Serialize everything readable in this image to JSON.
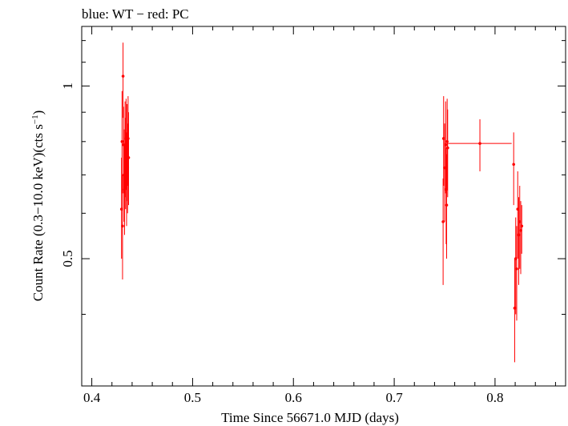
{
  "chart_data": {
    "type": "scatter",
    "title": "blue: WT − red: PC",
    "xlabel": "Time Since 56671.0 MJD (days)",
    "ylabel_main": "Count Rate (0.3−10.0 keV)(cts s",
    "ylabel_sup": "−1",
    "ylabel_end": ")",
    "xlim": [
      0.39,
      0.87
    ],
    "ylim": [
      0.3,
      1.27
    ],
    "yscale": "log",
    "xticks": [
      {
        "v": 0.4,
        "label": "0.4"
      },
      {
        "v": 0.5,
        "label": "0.5"
      },
      {
        "v": 0.6,
        "label": "0.6"
      },
      {
        "v": 0.7,
        "label": "0.7"
      },
      {
        "v": 0.8,
        "label": "0.8"
      }
    ],
    "yticks": [
      {
        "v": 0.5,
        "label": "0.5"
      },
      {
        "v": 1,
        "label": "1"
      }
    ],
    "series": [
      {
        "color": "#ff0000",
        "points": [
          {
            "x": 0.4295,
            "y": 0.61,
            "xerr": 0.0005,
            "ylo": 0.5,
            "yhi": 0.75
          },
          {
            "x": 0.43,
            "y": 0.8,
            "xerr": 0.0005,
            "ylo": 0.65,
            "yhi": 0.98
          },
          {
            "x": 0.4305,
            "y": 0.57,
            "xerr": 0.0005,
            "ylo": 0.46,
            "yhi": 0.7
          },
          {
            "x": 0.431,
            "y": 1.04,
            "xerr": 0.0005,
            "ylo": 0.88,
            "yhi": 1.19
          },
          {
            "x": 0.4315,
            "y": 0.79,
            "xerr": 0.0005,
            "ylo": 0.65,
            "yhi": 0.92
          },
          {
            "x": 0.432,
            "y": 0.7,
            "xerr": 0.0005,
            "ylo": 0.58,
            "yhi": 0.84
          },
          {
            "x": 0.4325,
            "y": 0.66,
            "xerr": 0.0005,
            "ylo": 0.55,
            "yhi": 0.79
          },
          {
            "x": 0.433,
            "y": 0.78,
            "xerr": 0.0005,
            "ylo": 0.64,
            "yhi": 0.94
          },
          {
            "x": 0.4335,
            "y": 0.74,
            "xerr": 0.0005,
            "ylo": 0.61,
            "yhi": 0.88
          },
          {
            "x": 0.434,
            "y": 0.81,
            "xerr": 0.0005,
            "ylo": 0.66,
            "yhi": 0.95
          },
          {
            "x": 0.4345,
            "y": 0.69,
            "xerr": 0.0005,
            "ylo": 0.57,
            "yhi": 0.83
          },
          {
            "x": 0.435,
            "y": 0.77,
            "xerr": 0.0005,
            "ylo": 0.63,
            "yhi": 0.93
          },
          {
            "x": 0.4355,
            "y": 0.72,
            "xerr": 0.0005,
            "ylo": 0.6,
            "yhi": 0.86
          },
          {
            "x": 0.436,
            "y": 0.81,
            "xerr": 0.0005,
            "ylo": 0.67,
            "yhi": 0.96
          },
          {
            "x": 0.4365,
            "y": 0.75,
            "xerr": 0.0005,
            "ylo": 0.62,
            "yhi": 0.9
          },
          {
            "x": 0.7485,
            "y": 0.58,
            "xerr": 0.0005,
            "ylo": 0.45,
            "yhi": 0.69
          },
          {
            "x": 0.749,
            "y": 0.81,
            "xerr": 0.0005,
            "ylo": 0.67,
            "yhi": 0.96
          },
          {
            "x": 0.75,
            "y": 0.72,
            "xerr": 0.0005,
            "ylo": 0.58,
            "yhi": 0.86
          },
          {
            "x": 0.751,
            "y": 0.79,
            "xerr": 0.0005,
            "ylo": 0.65,
            "yhi": 0.94
          },
          {
            "x": 0.7515,
            "y": 0.66,
            "xerr": 0.0005,
            "ylo": 0.53,
            "yhi": 0.78
          },
          {
            "x": 0.752,
            "y": 0.62,
            "xerr": 0.0005,
            "ylo": 0.5,
            "yhi": 0.76
          },
          {
            "x": 0.7525,
            "y": 0.8,
            "xerr": 0.0005,
            "ylo": 0.66,
            "yhi": 0.95
          },
          {
            "x": 0.753,
            "y": 0.78,
            "xerr": 0.0015,
            "ylo": 0.64,
            "yhi": 0.91
          },
          {
            "x": 0.785,
            "y": 0.794,
            "xerr": 0.0315,
            "ylo": 0.71,
            "yhi": 0.875
          },
          {
            "x": 0.8185,
            "y": 0.73,
            "xerr": 0.0005,
            "ylo": 0.62,
            "yhi": 0.83
          },
          {
            "x": 0.8195,
            "y": 0.41,
            "xerr": 0.0005,
            "ylo": 0.33,
            "yhi": 0.5
          },
          {
            "x": 0.8205,
            "y": 0.5,
            "xerr": 0.0005,
            "ylo": 0.4,
            "yhi": 0.59
          },
          {
            "x": 0.8215,
            "y": 0.48,
            "xerr": 0.0005,
            "ylo": 0.39,
            "yhi": 0.57
          },
          {
            "x": 0.8225,
            "y": 0.61,
            "xerr": 0.0005,
            "ylo": 0.5,
            "yhi": 0.71
          },
          {
            "x": 0.8235,
            "y": 0.55,
            "xerr": 0.0005,
            "ylo": 0.45,
            "yhi": 0.64
          },
          {
            "x": 0.8245,
            "y": 0.58,
            "xerr": 0.0005,
            "ylo": 0.48,
            "yhi": 0.67
          },
          {
            "x": 0.8255,
            "y": 0.56,
            "xerr": 0.0005,
            "ylo": 0.47,
            "yhi": 0.63
          },
          {
            "x": 0.8265,
            "y": 0.57,
            "xerr": 0.0008,
            "ylo": 0.51,
            "yhi": 0.62
          }
        ]
      }
    ]
  }
}
